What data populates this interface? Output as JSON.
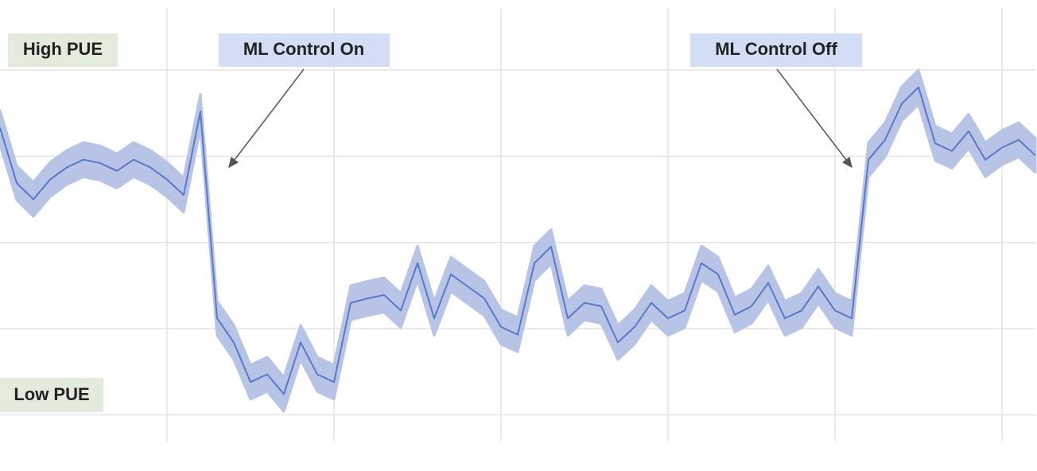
{
  "chart_data": {
    "type": "line",
    "annotations": [
      "High PUE",
      "Low PUE",
      "ML Control On",
      "ML Control Off"
    ],
    "x": [
      0,
      0.1,
      0.2,
      0.3,
      0.4,
      0.5,
      0.6,
      0.7,
      0.8,
      0.9,
      1,
      1.1,
      1.2,
      1.3,
      1.4,
      1.5,
      1.6,
      1.7,
      1.8,
      1.9,
      2,
      2.1,
      2.2,
      2.3,
      2.4,
      2.5,
      2.6,
      2.7,
      2.8,
      2.9,
      3,
      3.1,
      3.2,
      3.3,
      3.4,
      3.5,
      3.6,
      3.7,
      3.8,
      3.9,
      4,
      4.1,
      4.2,
      4.3,
      4.4,
      4.5,
      4.6,
      4.7,
      4.8,
      4.9,
      5,
      5.1,
      5.2,
      5.3,
      5.4,
      5.5,
      5.6,
      5.7,
      5.8,
      5.9,
      6,
      6.1,
      6.2
    ],
    "series": [
      {
        "color": "#5a78c8",
        "band_color": "#b7c4e6",
        "band": 0.2,
        "values": [
          3.33,
          2.69,
          2.5,
          2.73,
          2.87,
          2.96,
          2.92,
          2.83,
          2.96,
          2.87,
          2.73,
          2.55,
          3.52,
          1.12,
          0.84,
          0.38,
          0.47,
          0.24,
          0.84,
          0.47,
          0.38,
          1.3,
          1.35,
          1.39,
          1.21,
          1.76,
          1.12,
          1.63,
          1.49,
          1.35,
          1.02,
          0.93,
          1.76,
          1.95,
          1.12,
          1.3,
          1.26,
          0.84,
          1.02,
          1.3,
          1.12,
          1.21,
          1.76,
          1.63,
          1.16,
          1.26,
          1.53,
          1.12,
          1.21,
          1.49,
          1.21,
          1.12,
          2.96,
          3.19,
          3.61,
          3.8,
          3.15,
          3.06,
          3.29,
          2.96,
          3.1,
          3.19,
          3.01
        ]
      }
    ],
    "xlim": [
      0,
      6.2
    ],
    "ylim": [
      -0.31,
      4.72
    ],
    "xticks": [
      1,
      2,
      3,
      4,
      5,
      6
    ],
    "yticks": [
      0,
      1,
      2,
      3,
      4
    ],
    "grid": true
  }
}
